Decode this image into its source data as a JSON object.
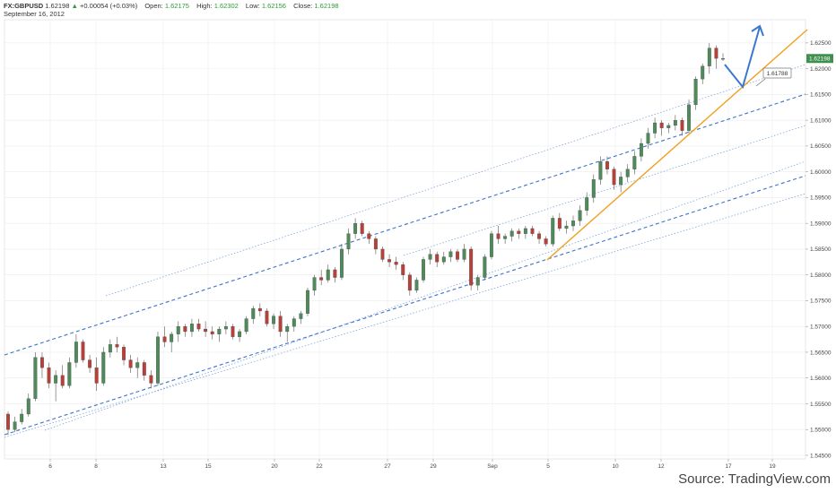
{
  "header": {
    "symbol": "FX:GBPUSD",
    "last": "1.62198",
    "change_arrow": "▲",
    "change": "+0.00054 (+0.03%)",
    "open_label": "Open:",
    "open": "1.62175",
    "high_label": "High:",
    "high": "1.62302",
    "low_label": "Low:",
    "low": "1.62156",
    "close_label": "Close:",
    "close": "1.62198",
    "date": "September 16, 2012"
  },
  "source": {
    "prefix": "Source: ",
    "brand": "TradingView.com"
  },
  "colors": {
    "up": "#4e8a5a",
    "down": "#b84038",
    "channel_dashed": "#3f73c9",
    "channel_dotted": "#6f9ae0",
    "trendline": "#f0a020",
    "forecast_arrow": "#3a78d0",
    "last_price_badge": "#3f8f4f",
    "grid": "#ececec"
  },
  "chart_data": {
    "type": "candlestick",
    "y_tick_labels": [
      "1.62500",
      "1.62000",
      "1.61500",
      "1.61000",
      "1.60500",
      "1.60000",
      "1.59500",
      "1.59000",
      "1.58500",
      "1.58000",
      "1.57500",
      "1.57000",
      "1.56500",
      "1.56000",
      "1.55500",
      "1.55000",
      "1.54500"
    ],
    "x_tick_labels": [
      "6",
      "8",
      "13",
      "15",
      "20",
      "22",
      "27",
      "29",
      "Sep",
      "5",
      "10",
      "12",
      "17",
      "19"
    ],
    "ylim": [
      1.5443,
      1.6295
    ],
    "last_price_label": "1.62198",
    "annotation_label": "1.61788",
    "grid": true,
    "candles": [
      [
        1.553,
        1.5535,
        1.549,
        1.55
      ],
      [
        1.55,
        1.5525,
        1.5495,
        1.5515
      ],
      [
        1.5515,
        1.554,
        1.551,
        1.553
      ],
      [
        1.553,
        1.557,
        1.5525,
        1.556
      ],
      [
        1.556,
        1.565,
        1.5555,
        1.564
      ],
      [
        1.564,
        1.565,
        1.56,
        1.562
      ],
      [
        1.562,
        1.563,
        1.558,
        1.559
      ],
      [
        1.559,
        1.5615,
        1.5555,
        1.5605
      ],
      [
        1.5605,
        1.5625,
        1.558,
        1.5585
      ],
      [
        1.5585,
        1.564,
        1.558,
        1.563
      ],
      [
        1.563,
        1.5685,
        1.562,
        1.567
      ],
      [
        1.567,
        1.5675,
        1.563,
        1.5635
      ],
      [
        1.5635,
        1.5645,
        1.561,
        1.562
      ],
      [
        1.562,
        1.564,
        1.5575,
        1.559
      ],
      [
        1.559,
        1.566,
        1.5585,
        1.565
      ],
      [
        1.565,
        1.5675,
        1.564,
        1.5665
      ],
      [
        1.5665,
        1.568,
        1.565,
        1.566
      ],
      [
        1.566,
        1.5665,
        1.5625,
        1.5635
      ],
      [
        1.5635,
        1.5645,
        1.561,
        1.562
      ],
      [
        1.562,
        1.564,
        1.56,
        1.563
      ],
      [
        1.563,
        1.5635,
        1.5595,
        1.5605
      ],
      [
        1.5605,
        1.5615,
        1.558,
        1.559
      ],
      [
        1.559,
        1.569,
        1.5585,
        1.568
      ],
      [
        1.568,
        1.57,
        1.566,
        1.567
      ],
      [
        1.567,
        1.569,
        1.565,
        1.5685
      ],
      [
        1.5685,
        1.571,
        1.567,
        1.57
      ],
      [
        1.57,
        1.5705,
        1.568,
        1.569
      ],
      [
        1.569,
        1.5715,
        1.568,
        1.5705
      ],
      [
        1.5705,
        1.5715,
        1.569,
        1.5695
      ],
      [
        1.5695,
        1.571,
        1.568,
        1.569
      ],
      [
        1.569,
        1.57,
        1.5675,
        1.5685
      ],
      [
        1.5685,
        1.57,
        1.567,
        1.5695
      ],
      [
        1.5695,
        1.571,
        1.5685,
        1.57
      ],
      [
        1.57,
        1.5705,
        1.5675,
        1.568
      ],
      [
        1.568,
        1.5695,
        1.567,
        1.569
      ],
      [
        1.569,
        1.572,
        1.5685,
        1.5715
      ],
      [
        1.5715,
        1.574,
        1.5705,
        1.5735
      ],
      [
        1.5735,
        1.5745,
        1.572,
        1.573
      ],
      [
        1.573,
        1.5735,
        1.57,
        1.5705
      ],
      [
        1.5705,
        1.5725,
        1.5695,
        1.572
      ],
      [
        1.572,
        1.573,
        1.568,
        1.569
      ],
      [
        1.569,
        1.5705,
        1.567,
        1.57
      ],
      [
        1.57,
        1.572,
        1.569,
        1.5715
      ],
      [
        1.5715,
        1.573,
        1.5705,
        1.5725
      ],
      [
        1.5725,
        1.5775,
        1.572,
        1.577
      ],
      [
        1.577,
        1.58,
        1.576,
        1.5795
      ],
      [
        1.5795,
        1.581,
        1.578,
        1.579
      ],
      [
        1.579,
        1.582,
        1.5785,
        1.581
      ],
      [
        1.581,
        1.5815,
        1.5785,
        1.5795
      ],
      [
        1.5795,
        1.586,
        1.579,
        1.585
      ],
      [
        1.585,
        1.589,
        1.584,
        1.588
      ],
      [
        1.588,
        1.591,
        1.587,
        1.59
      ],
      [
        1.59,
        1.5905,
        1.5875,
        1.588
      ],
      [
        1.588,
        1.5885,
        1.586,
        1.587
      ],
      [
        1.587,
        1.5875,
        1.584,
        1.585
      ],
      [
        1.585,
        1.5855,
        1.5825,
        1.583
      ],
      [
        1.583,
        1.584,
        1.5815,
        1.5825
      ],
      [
        1.5825,
        1.5835,
        1.581,
        1.582
      ],
      [
        1.582,
        1.5825,
        1.579,
        1.58
      ],
      [
        1.58,
        1.5805,
        1.576,
        1.577
      ],
      [
        1.577,
        1.5795,
        1.5765,
        1.579
      ],
      [
        1.579,
        1.5835,
        1.5785,
        1.583
      ],
      [
        1.583,
        1.585,
        1.582,
        1.584
      ],
      [
        1.584,
        1.5845,
        1.5815,
        1.5825
      ],
      [
        1.5825,
        1.5845,
        1.582,
        1.5835
      ],
      [
        1.5835,
        1.585,
        1.5825,
        1.5845
      ],
      [
        1.5845,
        1.585,
        1.5825,
        1.583
      ],
      [
        1.583,
        1.586,
        1.5825,
        1.585
      ],
      [
        1.585,
        1.5855,
        1.577,
        1.578
      ],
      [
        1.578,
        1.58,
        1.577,
        1.5795
      ],
      [
        1.5795,
        1.584,
        1.579,
        1.5835
      ],
      [
        1.5835,
        1.5885,
        1.583,
        1.588
      ],
      [
        1.588,
        1.5895,
        1.586,
        1.587
      ],
      [
        1.587,
        1.588,
        1.586,
        1.5875
      ],
      [
        1.5875,
        1.589,
        1.5865,
        1.5885
      ],
      [
        1.5885,
        1.589,
        1.587,
        1.588
      ],
      [
        1.588,
        1.5895,
        1.587,
        1.589
      ],
      [
        1.589,
        1.5895,
        1.5875,
        1.588
      ],
      [
        1.588,
        1.5885,
        1.586,
        1.587
      ],
      [
        1.587,
        1.5875,
        1.5855,
        1.586
      ],
      [
        1.586,
        1.5915,
        1.5855,
        1.591
      ],
      [
        1.591,
        1.592,
        1.5885,
        1.589
      ],
      [
        1.589,
        1.5905,
        1.588,
        1.5895
      ],
      [
        1.5895,
        1.5915,
        1.5885,
        1.5905
      ],
      [
        1.5905,
        1.5935,
        1.5895,
        1.5925
      ],
      [
        1.5925,
        1.596,
        1.5915,
        1.595
      ],
      [
        1.595,
        1.5995,
        1.594,
        1.5985
      ],
      [
        1.5985,
        1.603,
        1.5975,
        1.602
      ],
      [
        1.602,
        1.603,
        1.5995,
        1.6005
      ],
      [
        1.6005,
        1.601,
        1.5965,
        1.5975
      ],
      [
        1.5975,
        1.6,
        1.596,
        1.599
      ],
      [
        1.599,
        1.6015,
        1.598,
        1.6005
      ],
      [
        1.6005,
        1.604,
        1.5995,
        1.603
      ],
      [
        1.603,
        1.6065,
        1.602,
        1.6055
      ],
      [
        1.6055,
        1.6085,
        1.6045,
        1.6075
      ],
      [
        1.6075,
        1.6105,
        1.6065,
        1.6095
      ],
      [
        1.6095,
        1.61,
        1.607,
        1.6085
      ],
      [
        1.6085,
        1.6095,
        1.6075,
        1.609
      ],
      [
        1.609,
        1.611,
        1.608,
        1.61
      ],
      [
        1.61,
        1.6105,
        1.607,
        1.608
      ],
      [
        1.608,
        1.614,
        1.6075,
        1.613
      ],
      [
        1.613,
        1.6185,
        1.612,
        1.618
      ],
      [
        1.618,
        1.621,
        1.617,
        1.6205
      ],
      [
        1.6205,
        1.625,
        1.619,
        1.624
      ],
      [
        1.624,
        1.6245,
        1.62,
        1.622
      ],
      [
        1.622,
        1.623,
        1.6215,
        1.622
      ]
    ]
  }
}
